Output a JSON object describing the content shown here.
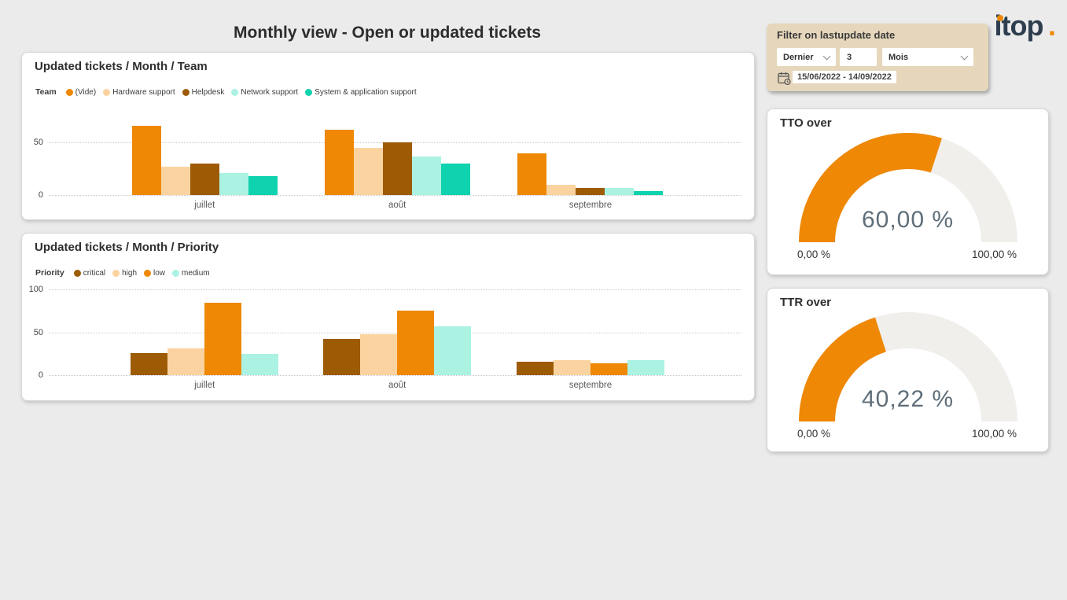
{
  "page_title": "Monthly view - Open or updated tickets",
  "logo": {
    "text": "itop",
    "suffix": "."
  },
  "filter_panel": {
    "title": "Filter on lastupdate date",
    "range_select": "Dernier",
    "count_value": "3",
    "unit_select": "Mois",
    "date_range": "15/06/2022 - 14/09/2022"
  },
  "colors": {
    "accent_orange": "#ee8805",
    "logo_navy": "#2e3e4e",
    "panel_tan": "#e6d7bc",
    "gauge_track": "#f0efec"
  },
  "chart_data": [
    {
      "type": "bar",
      "title": "Updated tickets / Month / Team",
      "legend_title": "Team",
      "legend_position": "top-left",
      "grid": "dotted-horizontal",
      "categories": [
        "juillet",
        "août",
        "septembre"
      ],
      "series": [
        {
          "name": "(Vide)",
          "color": "#ee8805",
          "values": [
            66,
            62,
            40
          ]
        },
        {
          "name": "Hardware support",
          "color": "#fbd3a0",
          "values": [
            27,
            45,
            10
          ]
        },
        {
          "name": "Helpdesk",
          "color": "#9d5b06",
          "values": [
            30,
            50,
            7
          ]
        },
        {
          "name": "Network support",
          "color": "#abf2e3",
          "values": [
            21,
            37,
            7
          ]
        },
        {
          "name": "System & application support",
          "color": "#0fd2ae",
          "values": [
            18,
            30,
            4
          ]
        }
      ],
      "ylim": [
        0,
        80
      ],
      "yticks": [
        0,
        50
      ]
    },
    {
      "type": "bar",
      "title": "Updated tickets / Month / Priority",
      "legend_title": "Priority",
      "legend_position": "top-left",
      "grid": "dotted-horizontal",
      "categories": [
        "juillet",
        "août",
        "septembre"
      ],
      "series": [
        {
          "name": "critical",
          "color": "#9d5b06",
          "values": [
            26,
            42,
            16
          ]
        },
        {
          "name": "high",
          "color": "#fbd3a0",
          "values": [
            31,
            48,
            17
          ]
        },
        {
          "name": "low",
          "color": "#ee8805",
          "values": [
            84,
            75,
            14
          ]
        },
        {
          "name": "medium",
          "color": "#abf2e3",
          "values": [
            25,
            57,
            17
          ]
        }
      ],
      "ylim": [
        0,
        100
      ],
      "yticks": [
        0,
        50,
        100
      ]
    },
    {
      "type": "gauge",
      "title": "TTO over",
      "value": 60.0,
      "value_label": "60,00 %",
      "min": 0,
      "max": 100,
      "min_label": "0,00 %",
      "max_label": "100,00 %",
      "color": "#ee8805",
      "track_color": "#f0efec"
    },
    {
      "type": "gauge",
      "title": "TTR over",
      "value": 40.22,
      "value_label": "40,22 %",
      "min": 0,
      "max": 100,
      "min_label": "0,00 %",
      "max_label": "100,00 %",
      "color": "#ee8805",
      "track_color": "#f0efec"
    }
  ]
}
